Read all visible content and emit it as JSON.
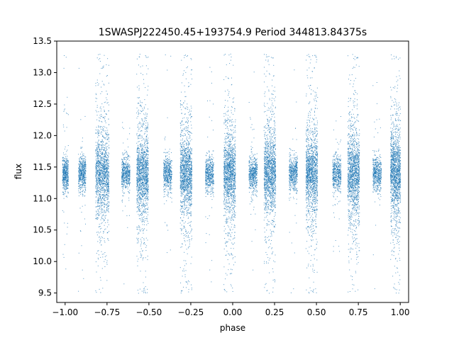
{
  "chart_data": {
    "type": "scatter",
    "title": "1SWASPJ222450.45+193754.9 Period 344813.84375s",
    "xlabel": "phase",
    "ylabel": "flux",
    "xlim": [
      -1.05,
      1.05
    ],
    "ylim": [
      9.35,
      13.5
    ],
    "x_ticks": [
      -1.0,
      -0.75,
      -0.5,
      -0.25,
      0.0,
      0.25,
      0.5,
      0.75,
      1.0
    ],
    "x_tick_labels": [
      "−1.00",
      "−0.75",
      "−0.50",
      "−0.25",
      "0.00",
      "0.25",
      "0.50",
      "0.75",
      "1.00"
    ],
    "y_ticks": [
      9.5,
      10.0,
      10.5,
      11.0,
      11.5,
      12.0,
      12.5,
      13.0,
      13.5
    ],
    "y_tick_labels": [
      "9.5",
      "10.0",
      "10.5",
      "11.0",
      "11.5",
      "12.0",
      "12.5",
      "13.0",
      "13.5"
    ],
    "grid": false,
    "color": "#1f77b4",
    "baseline_flux": 11.4,
    "clusters": [
      {
        "center": -1.0,
        "width": 0.035,
        "spread": "low"
      },
      {
        "center": -0.9,
        "width": 0.045,
        "spread": "low"
      },
      {
        "center": -0.78,
        "width": 0.08,
        "spread": "high"
      },
      {
        "center": -0.64,
        "width": 0.05,
        "spread": "low"
      },
      {
        "center": -0.54,
        "width": 0.07,
        "spread": "high"
      },
      {
        "center": -0.39,
        "width": 0.05,
        "spread": "low"
      },
      {
        "center": -0.28,
        "width": 0.07,
        "spread": "high"
      },
      {
        "center": -0.14,
        "width": 0.05,
        "spread": "low"
      },
      {
        "center": -0.02,
        "width": 0.07,
        "spread": "high"
      },
      {
        "center": 0.12,
        "width": 0.05,
        "spread": "low"
      },
      {
        "center": 0.22,
        "width": 0.07,
        "spread": "high"
      },
      {
        "center": 0.36,
        "width": 0.05,
        "spread": "low"
      },
      {
        "center": 0.47,
        "width": 0.07,
        "spread": "high"
      },
      {
        "center": 0.62,
        "width": 0.05,
        "spread": "low"
      },
      {
        "center": 0.72,
        "width": 0.07,
        "spread": "high"
      },
      {
        "center": 0.86,
        "width": 0.05,
        "spread": "low"
      },
      {
        "center": 0.97,
        "width": 0.06,
        "spread": "high"
      }
    ]
  }
}
